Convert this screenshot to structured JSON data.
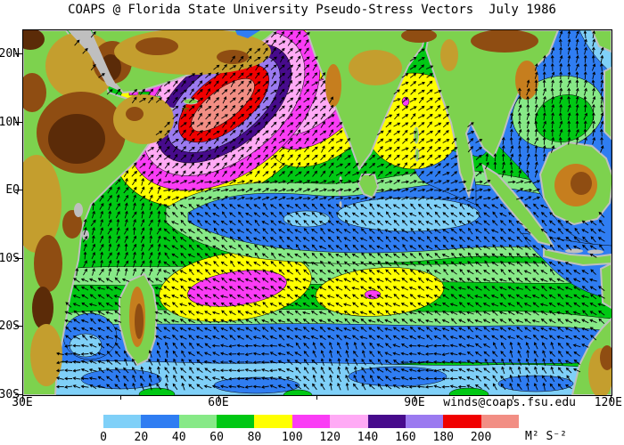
{
  "title": "COAPS @ Florida State University Pseudo-Stress Vectors  July 1986",
  "annotation": {
    "email": "winds@coaps.fsu.edu"
  },
  "axes": {
    "y_ticks": [
      {
        "label": "20N",
        "lat": 20
      },
      {
        "label": "10N",
        "lat": 10
      },
      {
        "label": "EQ",
        "lat": 0
      },
      {
        "label": "10S",
        "lat": -10
      },
      {
        "label": "20S",
        "lat": -20
      },
      {
        "label": "30S",
        "lat": -30
      }
    ],
    "x_ticks": [
      {
        "label": "30E",
        "lon": 30
      },
      {
        "label": "60E",
        "lon": 60
      },
      {
        "label": "90E",
        "lon": 90
      },
      {
        "label": "120E",
        "lon": 120
      }
    ],
    "x_minor_lons": [
      45,
      75,
      105
    ]
  },
  "colorbar": {
    "tick_labels": [
      "0",
      "20",
      "40",
      "60",
      "80",
      "100",
      "120",
      "140",
      "160",
      "180",
      "200"
    ],
    "colors": [
      "#7FD0F8",
      "#2F7DF2",
      "#87E987",
      "#00C814",
      "#FFFF00",
      "#FA3CF5",
      "#FFAAF5",
      "#470B8C",
      "#9B7AF0",
      "#F00000",
      "#F28E84"
    ],
    "units": "M² S⁻²"
  },
  "chart_data": {
    "type": "heatmap",
    "subtype": "filled-contour vector field map",
    "title": "COAPS @ Florida State University Pseudo-Stress Vectors  July 1986",
    "variable": "surface pseudo-stress magnitude with wind vector arrows",
    "units": "M² S⁻²",
    "lon_range_deg_east": [
      30,
      120
    ],
    "lat_range_deg": [
      -30,
      23.5
    ],
    "contour_levels": [
      0,
      20,
      40,
      60,
      80,
      100,
      120,
      140,
      160,
      180,
      200
    ],
    "level_colors": {
      "0-20": "#7FD0F8",
      "20-40": "#2F7DF2",
      "40-60": "#87E987",
      "60-80": "#00C814",
      "80-100": "#FFFF00",
      "100-120": "#FA3CF5",
      "120-140": "#FFAAF5",
      "140-160": "#470B8C",
      "160-180": "#9B7AF0",
      "180-200": "#F00000",
      "200+": "#F28E84"
    },
    "features": [
      {
        "name": "Somali / Findlater jet maximum (Arabian Sea)",
        "lon": 62,
        "lat": 11,
        "level": "200+ core with concentric rings 80-200"
      },
      {
        "name": "Bay of Bengal monsoon maximum",
        "lon": 87,
        "lat": 11,
        "level": "80-100 with small 100-120 spots"
      },
      {
        "name": "Southeast trade-wind maximum east of Madagascar",
        "lon": 58,
        "lat": -13,
        "level": "100-120 inside 80-100"
      },
      {
        "name": "Central south Indian Ocean trade maximum",
        "lon": 80,
        "lat": -14,
        "level": "80-100 with 100-120 spot"
      },
      {
        "name": "Equatorial low-wind band",
        "lon": 85,
        "lat": -3,
        "level": "0-40"
      },
      {
        "name": "South China Sea monsoon patch",
        "lon": 108,
        "lat": 12,
        "level": "40-80 inside 20-40"
      },
      {
        "name": "Subtropical low band along 25S-30S",
        "lat": -27,
        "level": "0-40"
      }
    ],
    "vectors": {
      "glyph": "black wind arrows on regular grid over ocean",
      "direction_pattern": "northeastward (SW monsoon) north of equator; west-northwestward trades south of equator",
      "color": "#000000"
    },
    "legend_position": "bottom colorbar",
    "grid": false
  },
  "map_colors": {
    "land": "#7DD24E",
    "land_tan": "#C49E2E",
    "land_orange": "#C67E1E",
    "land_brown": "#8F4D12",
    "land_darkbrown": "#5B2B08",
    "coast_gray": "#BFBFBF",
    "arrow": "#000000"
  }
}
